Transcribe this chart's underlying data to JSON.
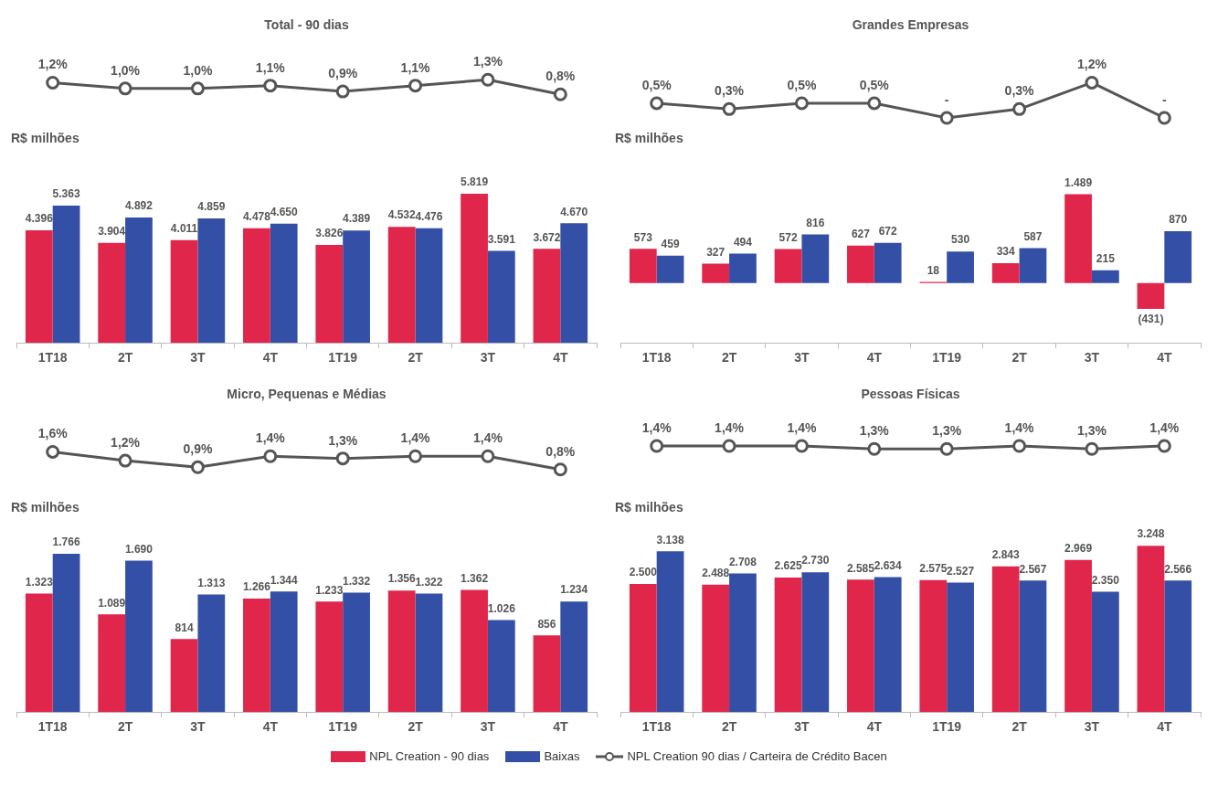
{
  "chart_data": [
    {
      "type": "line",
      "title": "Total - 90 dias",
      "legend": "bottom",
      "marker": "circle",
      "data_labels": true,
      "tick_labels": false,
      "categories": [
        null,
        null,
        null,
        null,
        null,
        null,
        null,
        null
      ],
      "series": [
        {
          "name": "NPL Creation 90 dias / Carteira de Crédito Bacen",
          "color": "#555555",
          "values": [
            1.2,
            1.0,
            1.0,
            1.1,
            0.9,
            1.1,
            1.3,
            0.8
          ],
          "value_labels": [
            "1,2%",
            "1,0%",
            "1,0%",
            "1,1%",
            "0,9%",
            "1,1%",
            "1,3%",
            "0,8%"
          ]
        }
      ]
    },
    {
      "type": "bar",
      "ylabel": "R$ milhões",
      "legend": "bottom",
      "data_labels": true,
      "categories": [
        "1T18",
        "2T",
        "3T",
        "4T",
        "1T19",
        "2T",
        "3T",
        "4T"
      ],
      "series": [
        {
          "name": "NPL Creation - 90 dias",
          "color": "#e0264b",
          "values": [
            4396,
            3904,
            4011,
            4478,
            3826,
            4532,
            5819,
            3672
          ],
          "value_labels": [
            "4.396",
            "3.904",
            "4.011",
            "4.478",
            "3.826",
            "4.532",
            "5.819",
            "3.672"
          ]
        },
        {
          "name": "Baixas",
          "color": "#3350a6",
          "values": [
            5363,
            4892,
            4859,
            4650,
            4389,
            4476,
            3591,
            4670
          ],
          "value_labels": [
            "5.363",
            "4.892",
            "4.859",
            "4.650",
            "4.389",
            "4.476",
            "3.591",
            "4.670"
          ]
        }
      ]
    },
    {
      "type": "line",
      "title": "Grandes Empresas",
      "marker": "circle",
      "data_labels": true,
      "tick_labels": false,
      "categories": [
        null,
        null,
        null,
        null,
        null,
        null,
        null,
        null
      ],
      "series": [
        {
          "color": "#555555",
          "values": [
            0.5,
            0.3,
            0.5,
            0.5,
            0,
            0.3,
            1.2,
            0
          ],
          "value_labels": [
            "0,5%",
            "0,3%",
            "0,5%",
            "0,5%",
            "-",
            "0,3%",
            "1,2%",
            "-"
          ]
        }
      ]
    },
    {
      "type": "bar",
      "ylabel": "R$ milhões",
      "data_labels": true,
      "categories": [
        "1T18",
        "2T",
        "3T",
        "4T",
        "1T19",
        "2T",
        "3T",
        "4T"
      ],
      "series": [
        {
          "color": "#e0264b",
          "values": [
            573,
            327,
            572,
            627,
            18,
            334,
            1489,
            -431
          ],
          "value_labels": [
            "573",
            "327",
            "572",
            "627",
            "18",
            "334",
            "1.489",
            "(431)"
          ]
        },
        {
          "color": "#3350a6",
          "values": [
            459,
            494,
            816,
            672,
            530,
            587,
            215,
            870
          ],
          "value_labels": [
            "459",
            "494",
            "816",
            "672",
            "530",
            "587",
            "215",
            "870"
          ]
        }
      ]
    },
    {
      "type": "line",
      "title": "Micro, Pequenas e Médias",
      "marker": "circle",
      "data_labels": true,
      "tick_labels": false,
      "categories": [
        null,
        null,
        null,
        null,
        null,
        null,
        null,
        null
      ],
      "series": [
        {
          "color": "#555555",
          "values": [
            1.6,
            1.2,
            0.9,
            1.4,
            1.3,
            1.4,
            1.4,
            0.8
          ],
          "value_labels": [
            "1,6%",
            "1,2%",
            "0,9%",
            "1,4%",
            "1,3%",
            "1,4%",
            "1,4%",
            "0,8%"
          ]
        }
      ]
    },
    {
      "type": "bar",
      "ylabel": "R$ milhões",
      "data_labels": true,
      "categories": [
        "1T18",
        "2T",
        "3T",
        "4T",
        "1T19",
        "2T",
        "3T",
        "4T"
      ],
      "series": [
        {
          "color": "#e0264b",
          "values": [
            1323,
            1089,
            814,
            1266,
            1233,
            1356,
            1362,
            856
          ],
          "value_labels": [
            "1.323",
            "1.089",
            "814",
            "1.266",
            "1.233",
            "1.356",
            "1.362",
            "856"
          ]
        },
        {
          "color": "#3350a6",
          "values": [
            1766,
            1690,
            1313,
            1344,
            1332,
            1322,
            1026,
            1234
          ],
          "value_labels": [
            "1.766",
            "1.690",
            "1.313",
            "1.344",
            "1.332",
            "1.322",
            "1.026",
            "1.234"
          ]
        }
      ]
    },
    {
      "type": "line",
      "title": "Pessoas Físicas",
      "marker": "circle",
      "data_labels": true,
      "tick_labels": false,
      "categories": [
        null,
        null,
        null,
        null,
        null,
        null,
        null,
        null
      ],
      "series": [
        {
          "color": "#555555",
          "values": [
            1.4,
            1.4,
            1.4,
            1.3,
            1.3,
            1.4,
            1.3,
            1.4
          ],
          "value_labels": [
            "1,4%",
            "1,4%",
            "1,4%",
            "1,3%",
            "1,3%",
            "1,4%",
            "1,3%",
            "1,4%"
          ]
        }
      ]
    },
    {
      "type": "bar",
      "ylabel": "R$ milhões",
      "data_labels": true,
      "categories": [
        "1T18",
        "2T",
        "3T",
        "4T",
        "1T19",
        "2T",
        "3T",
        "4T"
      ],
      "series": [
        {
          "color": "#e0264b",
          "values": [
            2500,
            2488,
            2625,
            2585,
            2575,
            2843,
            2969,
            3248
          ],
          "value_labels": [
            "2.500",
            "2.488",
            "2.625",
            "2.585",
            "2.575",
            "2.843",
            "2.969",
            "3.248"
          ]
        },
        {
          "color": "#3350a6",
          "values": [
            3138,
            2708,
            2730,
            2634,
            2527,
            2567,
            2350,
            2566
          ],
          "value_labels": [
            "3.138",
            "2.708",
            "2.730",
            "2.634",
            "2.527",
            "2.567",
            "2.350",
            "2.566"
          ]
        }
      ]
    }
  ]
}
